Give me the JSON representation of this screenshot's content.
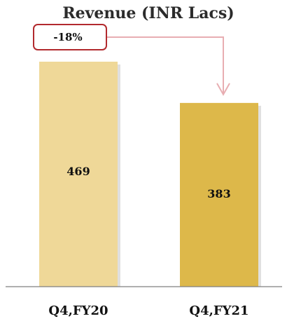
{
  "chart_data": {
    "type": "bar",
    "title": "Revenue (INR Lacs)",
    "categories": [
      "Q4,FY20",
      "Q4,FY21"
    ],
    "values": [
      469,
      383
    ],
    "data_labels": [
      "469",
      "383"
    ],
    "xlabel": "",
    "ylabel": "",
    "ylim": [
      0,
      469
    ],
    "grid": false,
    "legend": "none",
    "annotation": {
      "text": "-18%",
      "from_category": "Q4,FY20",
      "to_category": "Q4,FY21"
    },
    "colors": {
      "bars": [
        "#EFD898",
        "#DDB84A"
      ],
      "annotation_border": "#B22A2E",
      "arrow": "#E8AEB2",
      "axis": "#7F7F7F"
    }
  }
}
